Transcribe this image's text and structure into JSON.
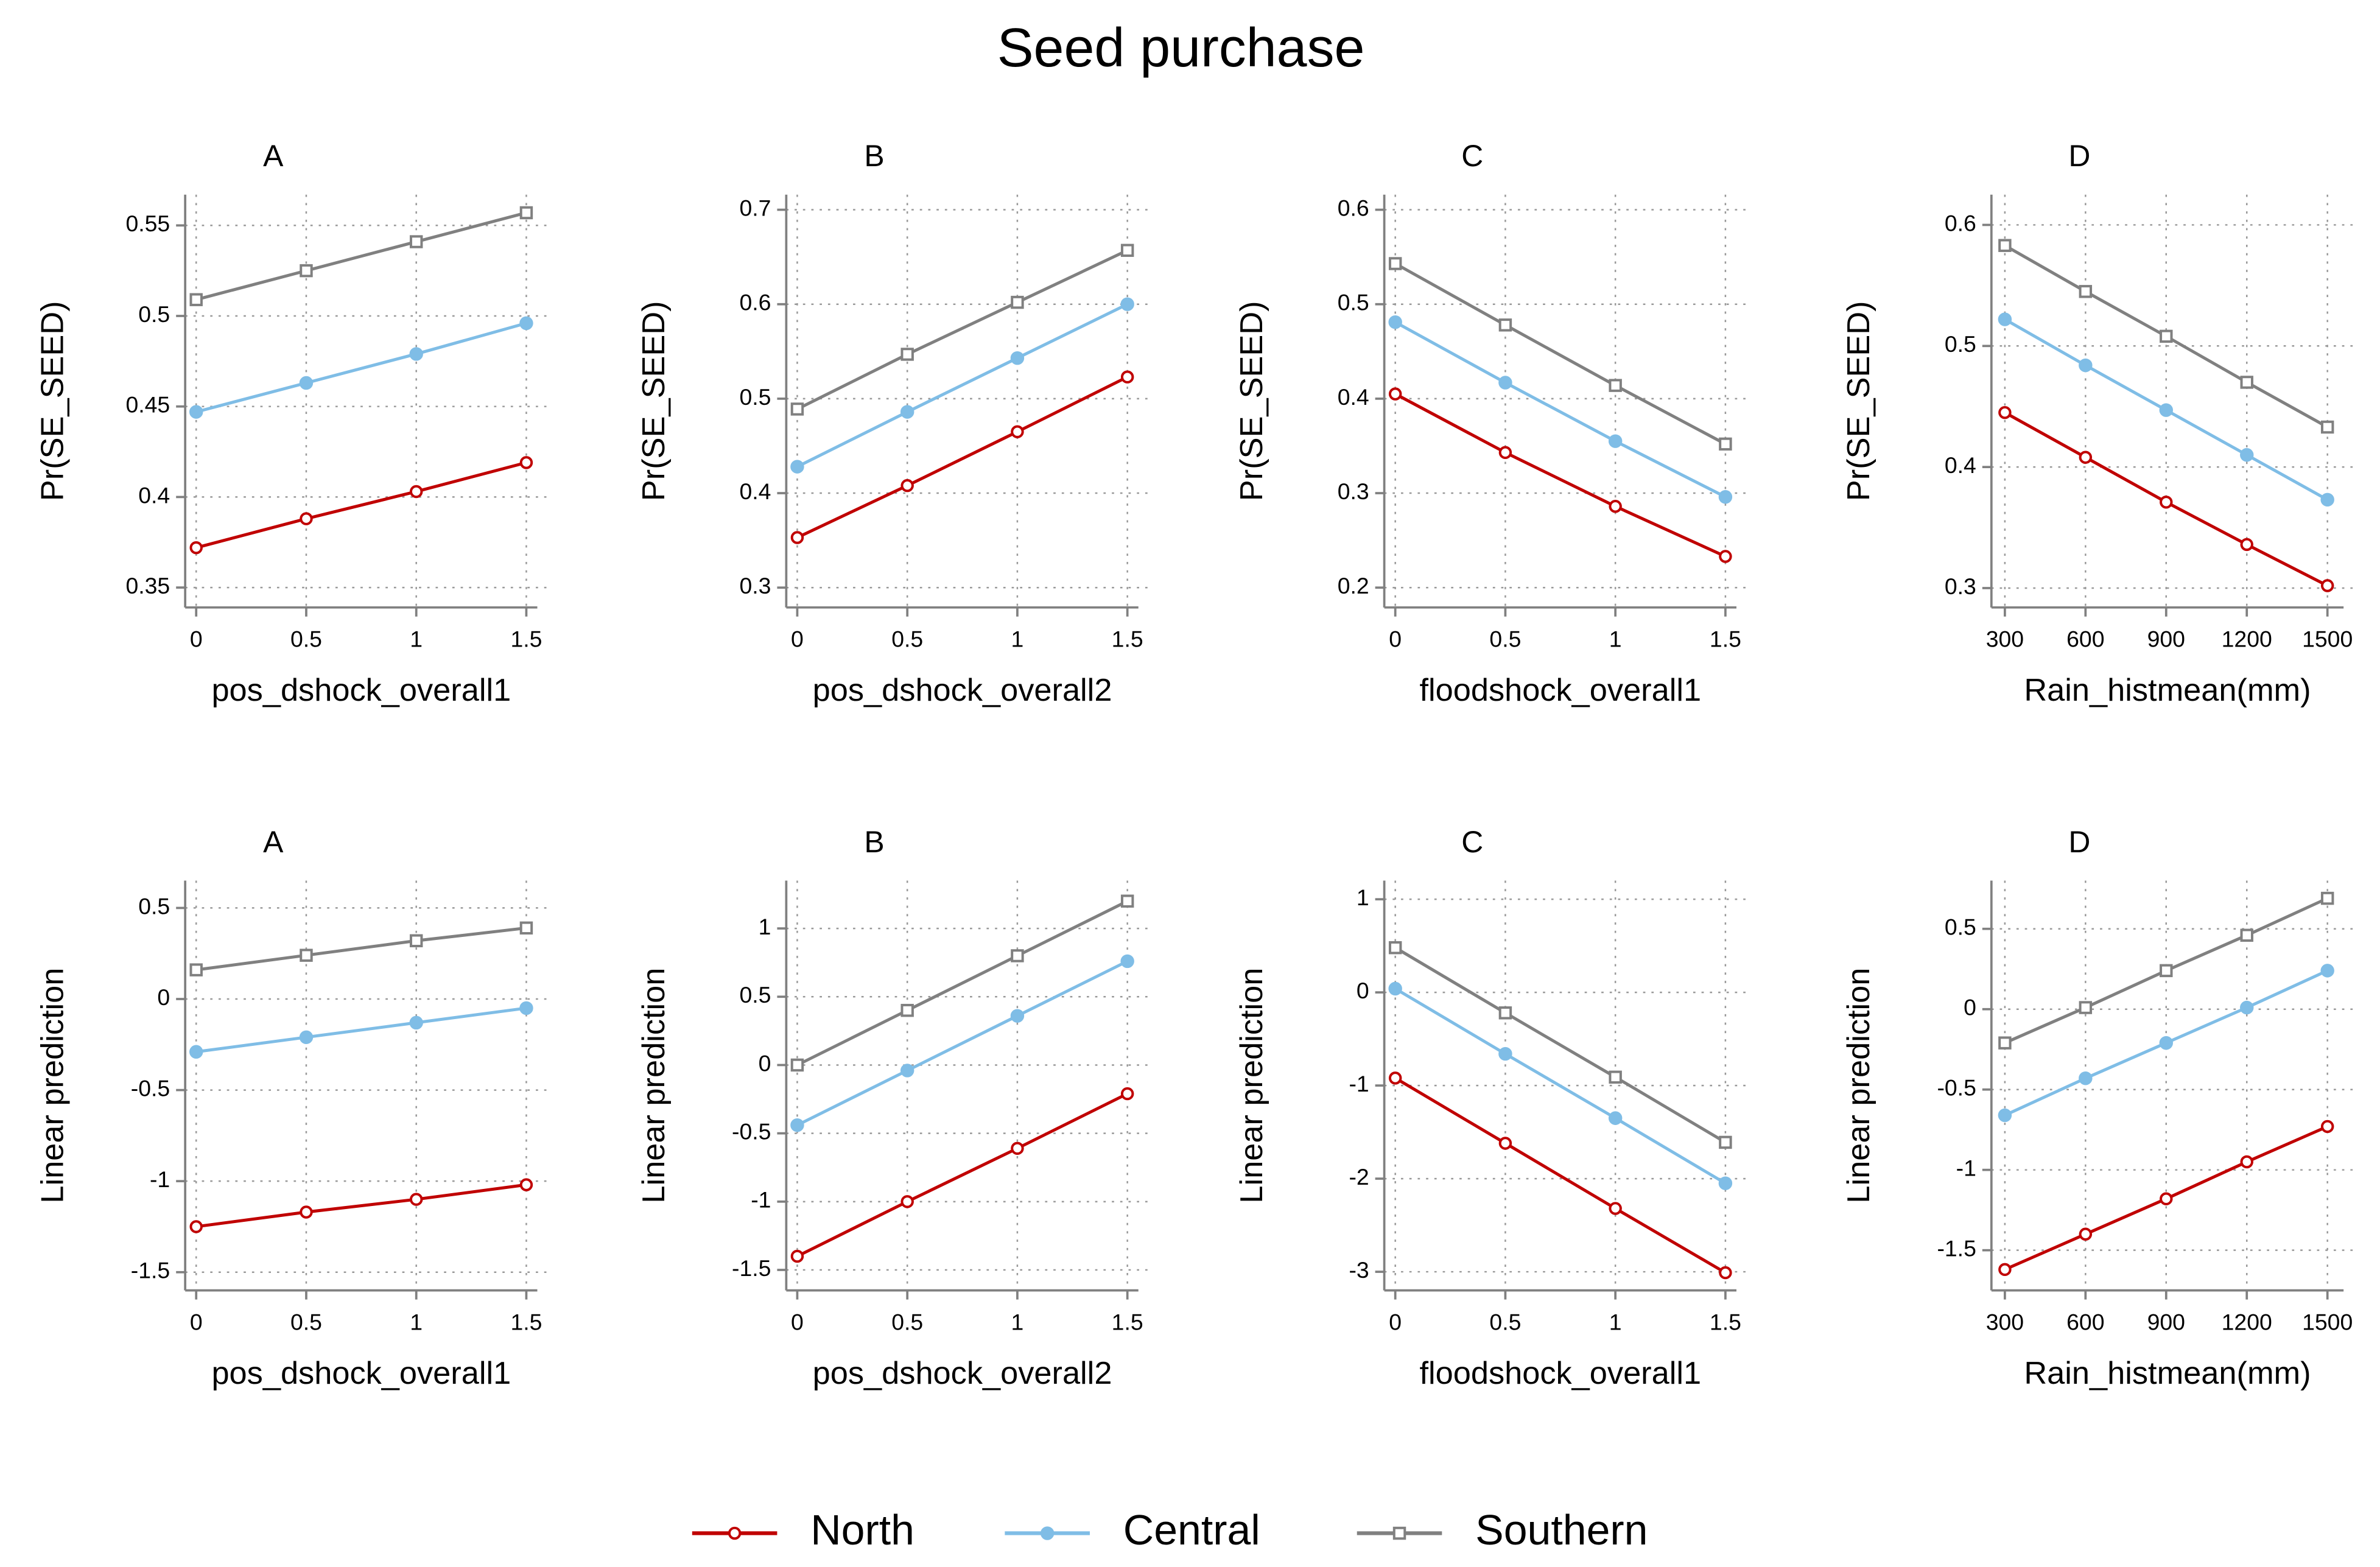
{
  "title": "Seed purchase",
  "chart_data": [
    {
      "type": "line",
      "title": "A",
      "xlabel": "pos_dshock_overall1",
      "ylabel": "Pr(SE_SEED)",
      "x": [
        0,
        0.5,
        1,
        1.5
      ],
      "xlim": [
        -0.05,
        1.55
      ],
      "xticks": [
        0,
        0.5,
        1,
        1.5
      ],
      "ylim": [
        0.339,
        0.567
      ],
      "yticks": [
        0.35,
        0.4,
        0.45,
        0.5,
        0.55
      ],
      "grid": true,
      "series": [
        {
          "name": "North",
          "color": "#c00000",
          "marker": "circle-hollow",
          "values": [
            0.372,
            0.388,
            0.403,
            0.419
          ]
        },
        {
          "name": "Central",
          "color": "#7fbde6",
          "marker": "circle",
          "values": [
            0.447,
            0.463,
            0.479,
            0.496
          ]
        },
        {
          "name": "Southern",
          "color": "#808080",
          "marker": "square-hollow",
          "values": [
            0.509,
            0.525,
            0.541,
            0.557
          ]
        }
      ]
    },
    {
      "type": "line",
      "title": "B",
      "xlabel": "pos_dshock_overall2",
      "ylabel": "Pr(SE_SEED)",
      "x": [
        0,
        0.5,
        1,
        1.5
      ],
      "xlim": [
        -0.05,
        1.55
      ],
      "xticks": [
        0,
        0.5,
        1,
        1.5
      ],
      "ylim": [
        0.279,
        0.716
      ],
      "yticks": [
        0.3,
        0.4,
        0.5,
        0.6,
        0.7
      ],
      "grid": true,
      "series": [
        {
          "name": "North",
          "color": "#c00000",
          "marker": "circle-hollow",
          "values": [
            0.353,
            0.408,
            0.465,
            0.523
          ]
        },
        {
          "name": "Central",
          "color": "#7fbde6",
          "marker": "circle",
          "values": [
            0.428,
            0.486,
            0.543,
            0.6
          ]
        },
        {
          "name": "Southern",
          "color": "#808080",
          "marker": "square-hollow",
          "values": [
            0.489,
            0.547,
            0.602,
            0.657
          ]
        }
      ]
    },
    {
      "type": "line",
      "title": "C",
      "xlabel": "floodshock_overall1",
      "ylabel": "Pr(SE_SEED)",
      "x": [
        0,
        0.5,
        1,
        1.5
      ],
      "xlim": [
        -0.05,
        1.55
      ],
      "xticks": [
        0,
        0.5,
        1,
        1.5
      ],
      "ylim": [
        0.179,
        0.616
      ],
      "yticks": [
        0.2,
        0.3,
        0.4,
        0.5,
        0.6
      ],
      "grid": true,
      "series": [
        {
          "name": "North",
          "color": "#c00000",
          "marker": "circle-hollow",
          "values": [
            0.405,
            0.343,
            0.286,
            0.233
          ]
        },
        {
          "name": "Central",
          "color": "#7fbde6",
          "marker": "circle",
          "values": [
            0.481,
            0.417,
            0.355,
            0.296
          ]
        },
        {
          "name": "Southern",
          "color": "#808080",
          "marker": "square-hollow",
          "values": [
            0.543,
            0.478,
            0.414,
            0.352
          ]
        }
      ]
    },
    {
      "type": "line",
      "title": "D",
      "xlabel": "Rain_histmean(mm)",
      "ylabel": "Pr(SE_SEED)",
      "x": [
        300,
        600,
        900,
        1200,
        1500
      ],
      "xlim": [
        250,
        1560
      ],
      "xticks": [
        300,
        600,
        900,
        1200,
        1500
      ],
      "ylim": [
        0.284,
        0.625
      ],
      "yticks": [
        0.3,
        0.4,
        0.5,
        0.6
      ],
      "grid": true,
      "series": [
        {
          "name": "North",
          "color": "#c00000",
          "marker": "circle-hollow",
          "values": [
            0.445,
            0.408,
            0.371,
            0.336,
            0.302
          ]
        },
        {
          "name": "Central",
          "color": "#7fbde6",
          "marker": "circle",
          "values": [
            0.522,
            0.484,
            0.447,
            0.41,
            0.373
          ]
        },
        {
          "name": "Southern",
          "color": "#808080",
          "marker": "square-hollow",
          "values": [
            0.583,
            0.545,
            0.508,
            0.47,
            0.433
          ]
        }
      ]
    },
    {
      "type": "line",
      "title": "A",
      "xlabel": "pos_dshock_overall1",
      "ylabel": "Linear prediction",
      "x": [
        0,
        0.5,
        1,
        1.5
      ],
      "xlim": [
        -0.05,
        1.55
      ],
      "xticks": [
        0,
        0.5,
        1,
        1.5
      ],
      "ylim": [
        -1.6,
        0.65
      ],
      "yticks": [
        -1.5,
        -1,
        -0.5,
        0,
        0.5
      ],
      "grid": true,
      "series": [
        {
          "name": "North",
          "color": "#c00000",
          "marker": "circle-hollow",
          "values": [
            -1.25,
            -1.17,
            -1.1,
            -1.02
          ]
        },
        {
          "name": "Central",
          "color": "#7fbde6",
          "marker": "circle",
          "values": [
            -0.29,
            -0.21,
            -0.13,
            -0.05
          ]
        },
        {
          "name": "Southern",
          "color": "#808080",
          "marker": "square-hollow",
          "values": [
            0.16,
            0.24,
            0.32,
            0.39
          ]
        }
      ]
    },
    {
      "type": "line",
      "title": "B",
      "xlabel": "pos_dshock_overall2",
      "ylabel": "Linear prediction",
      "x": [
        0,
        0.5,
        1,
        1.5
      ],
      "xlim": [
        -0.05,
        1.55
      ],
      "xticks": [
        0,
        0.5,
        1,
        1.5
      ],
      "ylim": [
        -1.65,
        1.35
      ],
      "yticks": [
        -1.5,
        -1,
        -0.5,
        0,
        0.5,
        1
      ],
      "grid": true,
      "series": [
        {
          "name": "North",
          "color": "#c00000",
          "marker": "circle-hollow",
          "values": [
            -1.4,
            -1.0,
            -0.61,
            -0.21
          ]
        },
        {
          "name": "Central",
          "color": "#7fbde6",
          "marker": "circle",
          "values": [
            -0.44,
            -0.04,
            0.36,
            0.76
          ]
        },
        {
          "name": "Southern",
          "color": "#808080",
          "marker": "square-hollow",
          "values": [
            0.0,
            0.4,
            0.8,
            1.2
          ]
        }
      ]
    },
    {
      "type": "line",
      "title": "C",
      "xlabel": "floodshock_overall1",
      "ylabel": "Linear prediction",
      "x": [
        0,
        0.5,
        1,
        1.5
      ],
      "xlim": [
        -0.05,
        1.55
      ],
      "xticks": [
        0,
        0.5,
        1,
        1.5
      ],
      "ylim": [
        -3.2,
        1.2
      ],
      "yticks": [
        -3,
        -2,
        -1,
        0,
        1
      ],
      "grid": true,
      "series": [
        {
          "name": "North",
          "color": "#c00000",
          "marker": "circle-hollow",
          "values": [
            -0.92,
            -1.62,
            -2.32,
            -3.01
          ]
        },
        {
          "name": "Central",
          "color": "#7fbde6",
          "marker": "circle",
          "values": [
            0.04,
            -0.66,
            -1.35,
            -2.05
          ]
        },
        {
          "name": "Southern",
          "color": "#808080",
          "marker": "square-hollow",
          "values": [
            0.48,
            -0.22,
            -0.91,
            -1.61
          ]
        }
      ]
    },
    {
      "type": "line",
      "title": "D",
      "xlabel": "Rain_histmean(mm)",
      "ylabel": "Linear prediction",
      "x": [
        300,
        600,
        900,
        1200,
        1500
      ],
      "xlim": [
        250,
        1560
      ],
      "xticks": [
        300,
        600,
        900,
        1200,
        1500
      ],
      "ylim": [
        -1.75,
        0.8
      ],
      "yticks": [
        -1.5,
        -1,
        -0.5,
        0,
        0.5
      ],
      "grid": true,
      "series": [
        {
          "name": "North",
          "color": "#c00000",
          "marker": "circle-hollow",
          "values": [
            -1.62,
            -1.4,
            -1.18,
            -0.95,
            -0.73
          ]
        },
        {
          "name": "Central",
          "color": "#7fbde6",
          "marker": "circle",
          "values": [
            -0.66,
            -0.43,
            -0.21,
            0.01,
            0.24
          ]
        },
        {
          "name": "Southern",
          "color": "#808080",
          "marker": "square-hollow",
          "values": [
            -0.21,
            0.01,
            0.24,
            0.46,
            0.69
          ]
        }
      ]
    }
  ]
}
